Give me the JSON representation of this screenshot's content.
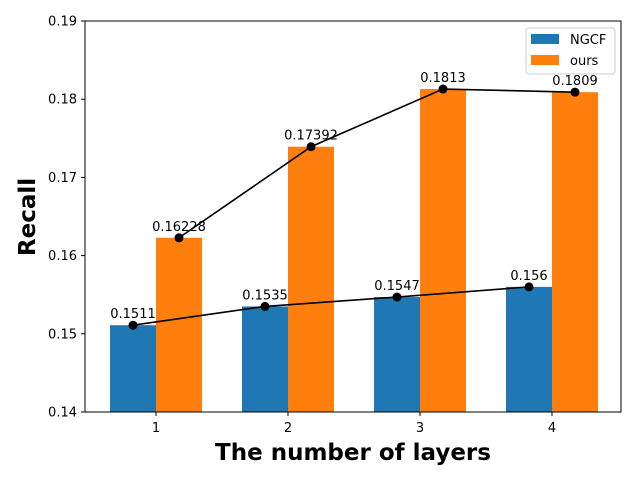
{
  "chart_data": {
    "type": "bar",
    "title": "",
    "xlabel": "The number of layers",
    "ylabel": "Recall",
    "categories": [
      "1",
      "2",
      "3",
      "4"
    ],
    "ylim": [
      0.14,
      0.19
    ],
    "yticks": [
      "0.14",
      "0.15",
      "0.16",
      "0.17",
      "0.18",
      "0.19"
    ],
    "grid": false,
    "legend_position": "top-right",
    "series": [
      {
        "name": "NGCF",
        "color": "#1f77b4",
        "values": [
          0.1511,
          0.1535,
          0.1547,
          0.156
        ],
        "labels": [
          "0.1511",
          "0.1535",
          "0.1547",
          "0.156"
        ]
      },
      {
        "name": "ours",
        "color": "#ff7f0e",
        "values": [
          0.16228,
          0.17392,
          0.1813,
          0.1809
        ],
        "labels": [
          "0.16228",
          "0.17392",
          "0.1813",
          "0.1809"
        ]
      }
    ],
    "line_overlay": {
      "type": "line",
      "color": "#000000",
      "marker": "circle",
      "connects": "each series value at its bar"
    }
  }
}
